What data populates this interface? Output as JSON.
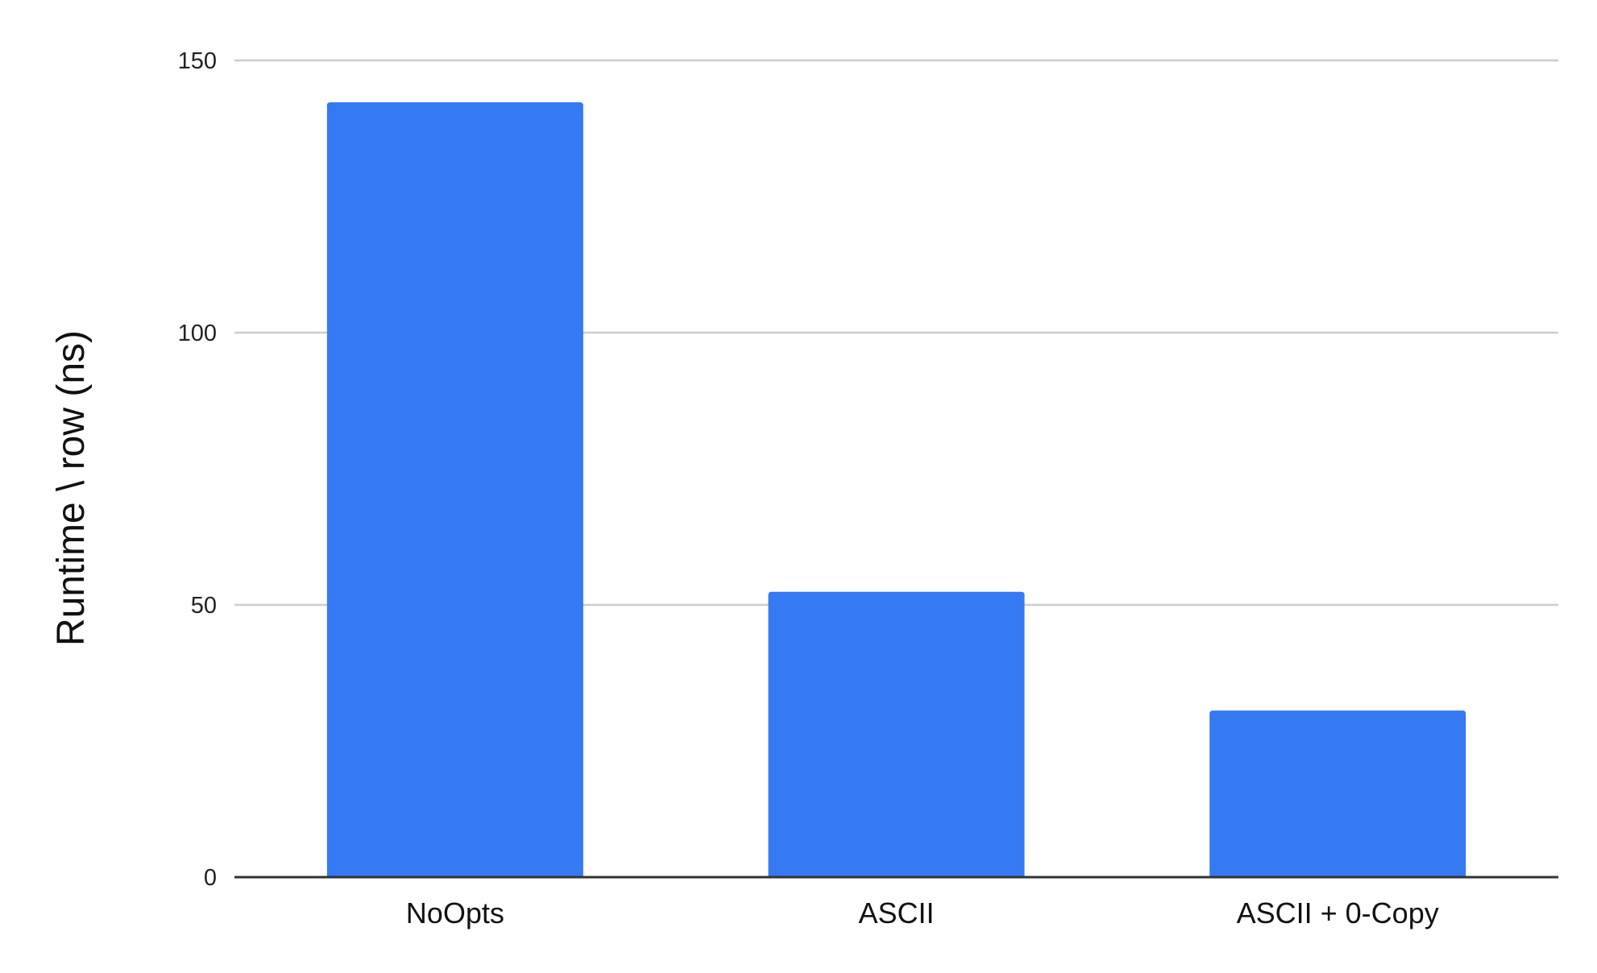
{
  "chart_data": {
    "type": "bar",
    "title": "",
    "xlabel": "",
    "ylabel": "Runtime \\ row (ns)",
    "categories": [
      "NoOpts",
      "ASCII",
      "ASCII + 0-Copy"
    ],
    "values": [
      142.3,
      52.4,
      30.6
    ],
    "ylim": [
      0,
      150
    ],
    "yticks": [
      "0",
      "50",
      "100",
      "150"
    ],
    "grid": true,
    "legend": "none",
    "colors": {
      "bar": "#3579F3",
      "grid": "#CCCCCC",
      "axis": "#333333"
    }
  }
}
